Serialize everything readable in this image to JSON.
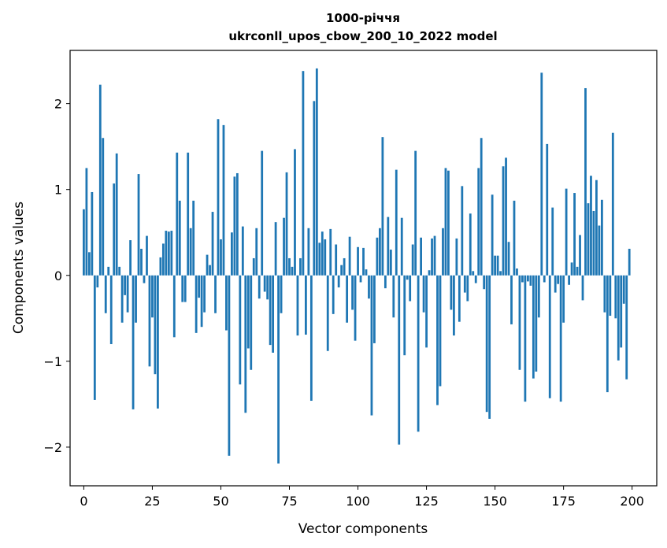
{
  "chart_data": {
    "type": "bar",
    "title": "1000-річчя",
    "subtitle": "ukrconll_upos_cbow_200_10_2022 model",
    "xlabel": "Vector components",
    "ylabel": "Components values",
    "xlim": [
      -5,
      209
    ],
    "ylim": [
      -2.45,
      2.62
    ],
    "xticks": [
      0,
      25,
      50,
      75,
      100,
      125,
      150,
      175,
      200
    ],
    "xtick_labels": [
      "0",
      "25",
      "50",
      "75",
      "100",
      "125",
      "150",
      "175",
      "200"
    ],
    "yticks": [
      -2,
      -1,
      0,
      1,
      2
    ],
    "ytick_labels": [
      "−2",
      "−1",
      "0",
      "1",
      "2"
    ],
    "bar_color": "#1f77b4",
    "x": [
      0,
      1,
      2,
      3,
      4,
      5,
      6,
      7,
      8,
      9,
      10,
      11,
      12,
      13,
      14,
      15,
      16,
      17,
      18,
      19,
      20,
      21,
      22,
      23,
      24,
      25,
      26,
      27,
      28,
      29,
      30,
      31,
      32,
      33,
      34,
      35,
      36,
      37,
      38,
      39,
      40,
      41,
      42,
      43,
      44,
      45,
      46,
      47,
      48,
      49,
      50,
      51,
      52,
      53,
      54,
      55,
      56,
      57,
      58,
      59,
      60,
      61,
      62,
      63,
      64,
      65,
      66,
      67,
      68,
      69,
      70,
      71,
      72,
      73,
      74,
      75,
      76,
      77,
      78,
      79,
      80,
      81,
      82,
      83,
      84,
      85,
      86,
      87,
      88,
      89,
      90,
      91,
      92,
      93,
      94,
      95,
      96,
      97,
      98,
      99,
      100,
      101,
      102,
      103,
      104,
      105,
      106,
      107,
      108,
      109,
      110,
      111,
      112,
      113,
      114,
      115,
      116,
      117,
      118,
      119,
      120,
      121,
      122,
      123,
      124,
      125,
      126,
      127,
      128,
      129,
      130,
      131,
      132,
      133,
      134,
      135,
      136,
      137,
      138,
      139,
      140,
      141,
      142,
      143,
      144,
      145,
      146,
      147,
      148,
      149,
      150,
      151,
      152,
      153,
      154,
      155,
      156,
      157,
      158,
      159,
      160,
      161,
      162,
      163,
      164,
      165,
      166,
      167,
      168,
      169,
      170,
      171,
      172,
      173,
      174,
      175,
      176,
      177,
      178,
      179,
      180,
      181,
      182,
      183,
      184,
      185,
      186,
      187,
      188,
      189,
      190,
      191,
      192,
      193,
      194,
      195,
      196,
      197,
      198,
      199
    ],
    "values": [
      0.77,
      1.25,
      0.27,
      0.97,
      -1.45,
      -0.14,
      2.22,
      1.6,
      -0.44,
      0.1,
      -0.8,
      1.07,
      1.42,
      0.1,
      -0.55,
      -0.23,
      -0.43,
      0.41,
      -1.56,
      -0.55,
      1.18,
      0.31,
      -0.09,
      0.46,
      -1.06,
      -0.49,
      -1.15,
      -1.55,
      0.21,
      0.37,
      0.52,
      0.51,
      0.52,
      -0.72,
      1.43,
      0.87,
      -0.31,
      -0.31,
      1.43,
      0.55,
      0.87,
      -0.67,
      -0.26,
      -0.6,
      -0.43,
      0.24,
      0.12,
      0.74,
      -0.44,
      1.82,
      0.42,
      1.75,
      -0.64,
      -2.1,
      0.5,
      1.15,
      1.19,
      -1.27,
      0.57,
      -1.6,
      -0.85,
      -1.1,
      0.2,
      0.55,
      -0.27,
      1.45,
      -0.19,
      -0.28,
      -0.81,
      -0.9,
      0.62,
      -2.19,
      -0.44,
      0.67,
      1.2,
      0.2,
      0.1,
      1.47,
      -0.7,
      0.2,
      2.38,
      -0.69,
      0.55,
      -1.46,
      2.03,
      2.41,
      0.38,
      0.51,
      0.42,
      -0.88,
      0.54,
      -0.45,
      0.36,
      -0.14,
      0.12,
      0.2,
      -0.55,
      0.45,
      -0.4,
      -0.76,
      0.33,
      -0.08,
      0.32,
      0.07,
      -0.27,
      -1.63,
      -0.79,
      0.44,
      0.55,
      1.61,
      -0.15,
      0.68,
      0.3,
      -0.49,
      1.23,
      -1.97,
      0.67,
      -0.93,
      -0.05,
      -0.3,
      0.36,
      1.45,
      -1.82,
      0.44,
      -0.43,
      -0.84,
      0.06,
      0.43,
      0.46,
      -1.51,
      -1.29,
      0.55,
      1.25,
      1.22,
      -0.4,
      -0.7,
      0.43,
      -0.54,
      1.04,
      -0.2,
      -0.3,
      0.72,
      0.05,
      -0.09,
      1.25,
      1.6,
      -0.16,
      -1.59,
      -1.67,
      0.94,
      0.23,
      0.23,
      0.05,
      1.27,
      1.37,
      0.39,
      -0.57,
      0.87,
      0.08,
      -1.1,
      -0.08,
      -1.47,
      -0.07,
      -0.12,
      -1.2,
      -1.12,
      -0.49,
      2.36,
      -0.08,
      1.53,
      -1.43,
      0.79,
      -0.2,
      -0.1,
      -1.47,
      -0.55,
      1.01,
      -0.11,
      0.15,
      0.96,
      0.1,
      0.47,
      -0.29,
      2.18,
      0.84,
      1.16,
      0.75,
      1.11,
      0.58,
      0.88,
      -0.43,
      -1.36,
      -0.47,
      1.66,
      -0.5,
      -0.99,
      -0.84,
      -0.33,
      -1.21,
      0.31
    ]
  }
}
